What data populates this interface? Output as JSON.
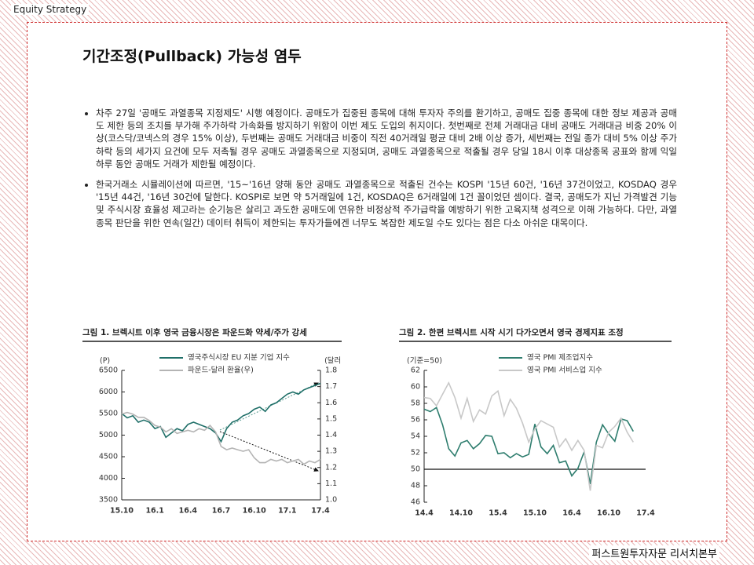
{
  "header": {
    "label": "Equity Strategy"
  },
  "title": "기간조정(Pullback) 가능성 염두",
  "bullets": [
    "차주 27일 '공매도 과열종목 지정제도' 시행 예정이다. 공매도가 집중된 종목에 대해 투자자 주의를 환기하고, 공매도 집중 종목에 대한 정보 제공과 공매도 제한 등의 조치를 부가해 주가하락 가속화를 방지하기 위함이 이번 제도 도입의 취지이다. 첫번째로 전체 거래대금 대비 공매도 거래대금 비중 20% 이상(코스닥/코넥스의 경우 15% 이상), 두번째는 공매도 거래대금 비중이 직전 40거래일 평균 대비 2배 이상 증가, 세번째는 전일 종가 대비 5% 이상 주가 하락 등의 세가지 요건에 모두 저촉될 경우 공매도 과열종목으로 지정되며, 공매도 과열종목으로 적출될 경우 당일 18시 이후 대상종목 공표와 함께 익일 하루 동안 공매도 거래가 제한될 예정이다.",
    "한국거래소 시뮬레이션에 따르면, '15~'16년 양해 동안 공매도 과열종목으로 적출된 건수는 KOSPI '15년 60건, '16년 37건이었고, KOSDAQ 경우 '15년 44건, '16년 30건에 달한다. KOSPI로 보면 약 5거래일에 1건, KOSDAQ은 6거래일에 1건 꼴이었던 셈이다. 결국, 공매도가 지닌 가격발견 기능 및 주식시장 효율성 제고라는 순기능은 살리고 과도한 공매도에 연유한 비정상적 주가급락을 예방하기 위한 고육지책 성격으로 이해 가능하다. 다만, 과열종목 판단을 위한 연속(일간) 데이터 취득이 제한되는 투자가들에겐 너무도 복잡한 제도일 수도 있다는 점은 다소 아쉬운 대목이다."
  ],
  "footer": "퍼스트원투자자문 리서치본부",
  "chart_data": [
    {
      "type": "line",
      "title": "그림 1. 브렉시트 이후 영국 금융시장은 파운드화 약세/주가 강세",
      "ylabel": "(P)",
      "y2label": "(달러)",
      "categories": [
        "15.10",
        null,
        null,
        null,
        null,
        null,
        "16.1",
        null,
        null,
        null,
        null,
        null,
        "16.4",
        null,
        null,
        null,
        null,
        null,
        "16.7",
        null,
        null,
        null,
        null,
        null,
        "16.10",
        null,
        null,
        null,
        null,
        null,
        "17.1",
        null,
        null,
        null,
        null,
        null,
        "17.4"
      ],
      "ylim": [
        3500,
        6500
      ],
      "yticks": [
        3500,
        4000,
        4500,
        5000,
        5500,
        6000,
        6500
      ],
      "y2lim": [
        1.0,
        1.8
      ],
      "y2ticks": [
        {
          "value": 1,
          "label": "1.0"
        },
        1.1,
        1.2,
        1.3,
        1.4,
        1.5,
        1.6,
        1.7,
        1.8
      ],
      "series": [
        {
          "name": "영국주식시장 EU 지분 기업 지수",
          "color": "#1f6f68",
          "values": [
            5500,
            5400,
            5450,
            5300,
            5350,
            5300,
            5150,
            5200,
            4950,
            5050,
            5150,
            5100,
            5250,
            5300,
            5250,
            5200,
            5150,
            5050,
            4850,
            5150,
            5300,
            5350,
            5450,
            5500,
            5600,
            5650,
            5550,
            5700,
            5750,
            5850,
            5950,
            6000,
            5950,
            6050,
            6100,
            6150,
            6200
          ]
        },
        {
          "name": "파운드-달러 환율(우)",
          "color": "#b4b4b4",
          "axis": "y2",
          "values": [
            1.53,
            1.54,
            1.53,
            1.51,
            1.51,
            1.49,
            1.46,
            1.45,
            1.42,
            1.44,
            1.41,
            1.42,
            1.43,
            1.42,
            1.44,
            1.43,
            1.46,
            1.42,
            1.33,
            1.31,
            1.32,
            1.31,
            1.3,
            1.31,
            1.26,
            1.23,
            1.23,
            1.25,
            1.24,
            1.25,
            1.23,
            1.24,
            1.25,
            1.22,
            1.24,
            1.23,
            1.25
          ]
        }
      ]
    },
    {
      "type": "line",
      "title": "그림 2. 한편 브렉시트 시작 시기 다가오면서 영국 경제지표 조정",
      "ylabel": "(기준=50)",
      "categories": [
        "14.4",
        null,
        null,
        null,
        null,
        null,
        "14.10",
        null,
        null,
        null,
        null,
        null,
        "15.4",
        null,
        null,
        null,
        null,
        null,
        "15.10",
        null,
        null,
        null,
        null,
        null,
        "16.4",
        null,
        null,
        null,
        null,
        null,
        "16.10",
        null,
        null,
        null,
        null,
        null,
        "17.4"
      ],
      "ylim": [
        46,
        62
      ],
      "yticks": [
        46,
        48,
        50,
        52,
        54,
        56,
        58,
        60,
        62
      ],
      "series": [
        {
          "name": "영국 PMI 제조업지수",
          "color": "#2e7d6e",
          "values": [
            57.3,
            57.0,
            57.5,
            55.4,
            52.5,
            51.6,
            53.2,
            53.5,
            52.5,
            53.1,
            54.1,
            54.0,
            51.9,
            52.0,
            51.4,
            51.9,
            51.5,
            51.8,
            55.5,
            52.7,
            51.9,
            52.9,
            50.8,
            51.0,
            49.2,
            50.1,
            52.1,
            48.2,
            53.3,
            55.4,
            54.3,
            53.4,
            56.1,
            55.9,
            54.6,
            null,
            null
          ]
        },
        {
          "name": "영국 PMI 서비스업 지수",
          "color": "#c8c8c8",
          "values": [
            58.7,
            58.6,
            57.7,
            59.1,
            60.5,
            58.7,
            56.2,
            58.6,
            55.8,
            57.2,
            56.7,
            58.9,
            59.5,
            56.5,
            58.5,
            57.4,
            55.6,
            53.3,
            54.9,
            55.9,
            55.5,
            55.1,
            52.7,
            53.7,
            52.3,
            53.5,
            52.3,
            47.4,
            52.9,
            52.6,
            54.5,
            55.2,
            56.2,
            54.5,
            53.3,
            null,
            null
          ]
        }
      ]
    }
  ]
}
